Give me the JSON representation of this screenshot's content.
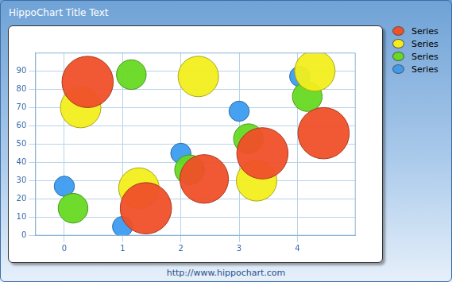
{
  "chart_data": {
    "type": "bubble",
    "title": "HippoChart Title Text",
    "footer": "http://www.hippochart.com",
    "xlim": [
      -0.5,
      5
    ],
    "xticks": [
      0,
      1,
      2,
      3,
      4
    ],
    "ylim": [
      0,
      100
    ],
    "yticks": [
      0,
      10,
      20,
      30,
      40,
      50,
      60,
      70,
      80,
      90
    ],
    "grid": true,
    "legend": "top-right",
    "series": [
      {
        "name": "Series",
        "color": "#f0502a",
        "x": [
          0.4,
          1.4,
          2.4,
          3.4,
          4.45
        ],
        "values": [
          84,
          15,
          31,
          45,
          56
        ],
        "sizes": [
          38,
          38,
          36,
          38,
          38
        ]
      },
      {
        "name": "Series",
        "color": "#f2ee1e",
        "x": [
          0.28,
          1.28,
          2.3,
          3.3,
          4.3
        ],
        "values": [
          70,
          26,
          87,
          30,
          90
        ],
        "sizes": [
          30,
          30,
          30,
          30,
          30
        ]
      },
      {
        "name": "Series",
        "color": "#66d922",
        "x": [
          0.15,
          1.15,
          2.15,
          3.16,
          4.17
        ],
        "values": [
          15,
          88,
          36,
          53,
          76
        ],
        "sizes": [
          22,
          22,
          22,
          22,
          22
        ]
      },
      {
        "name": "Series",
        "color": "#3d9cf0",
        "x": [
          0,
          1.0,
          2,
          3.0,
          4.04
        ],
        "values": [
          27,
          5,
          45,
          68,
          87
        ],
        "sizes": [
          15,
          15,
          15,
          15,
          15
        ]
      }
    ]
  }
}
